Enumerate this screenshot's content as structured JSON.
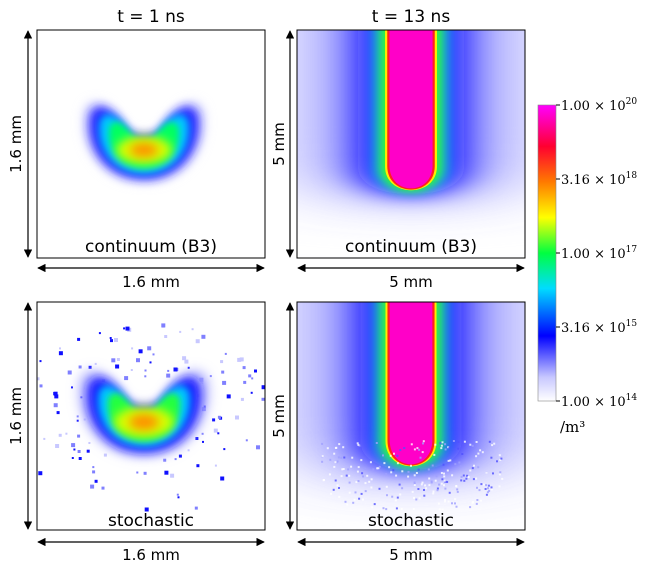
{
  "columns": [
    {
      "title": "t = 1 ns",
      "axis_label": "1.6 mm"
    },
    {
      "title": "t = 13 ns",
      "axis_label": "5 mm"
    }
  ],
  "rows": [
    {
      "panel_label": "continuum (B3)"
    },
    {
      "panel_label": "stochastic"
    }
  ],
  "colorbar": {
    "unit": "/m³",
    "ticks": [
      {
        "mantissa": "1.00",
        "exponent": "20",
        "position": 1.0
      },
      {
        "mantissa": "3.16",
        "exponent": "18",
        "position": 0.75
      },
      {
        "mantissa": "1.00",
        "exponent": "17",
        "position": 0.5
      },
      {
        "mantissa": "3.16",
        "exponent": "15",
        "position": 0.25
      },
      {
        "mantissa": "1.00",
        "exponent": "14",
        "position": 0.0
      }
    ],
    "colormap": [
      "#ffffff",
      "#0000ff",
      "#00e0ff",
      "#00ff00",
      "#ffff00",
      "#ff8000",
      "#ff0000",
      "#ff00ff"
    ]
  }
}
